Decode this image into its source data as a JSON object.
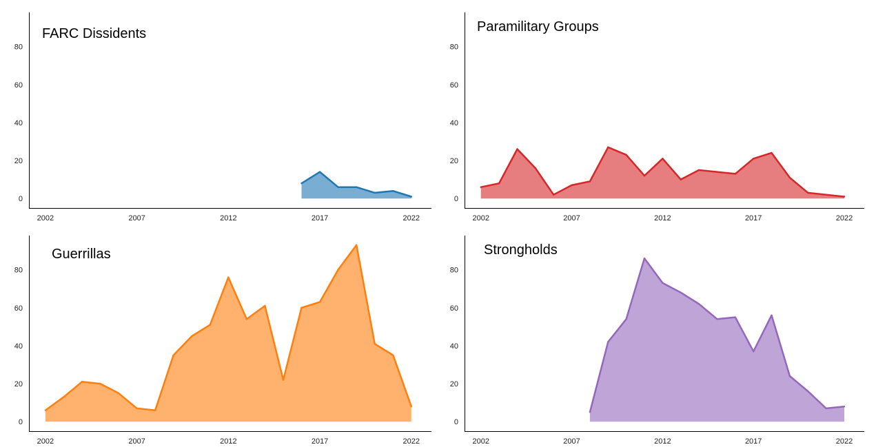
{
  "chart_data": [
    {
      "type": "area",
      "title": "FARC Dissidents",
      "color": "#1f77b4",
      "x": [
        2016,
        2017,
        2018,
        2019,
        2020,
        2021,
        2022
      ],
      "values": [
        8,
        14,
        6,
        6,
        3,
        4,
        1
      ],
      "xticks": [
        "2002",
        "2007",
        "2012",
        "2017",
        "2022"
      ],
      "yticks": [
        "0",
        "20",
        "40",
        "60",
        "80"
      ],
      "xlim": [
        2001.1,
        2023.1
      ],
      "ylim": [
        -5,
        98
      ],
      "xlabel": "",
      "ylabel": "",
      "grid": false
    },
    {
      "type": "area",
      "title": "Paramilitary Groups",
      "color": "#d62728",
      "x": [
        2002,
        2003,
        2004,
        2005,
        2006,
        2007,
        2008,
        2009,
        2010,
        2011,
        2012,
        2013,
        2014,
        2015,
        2016,
        2017,
        2018,
        2019,
        2020,
        2021,
        2022
      ],
      "values": [
        6,
        8,
        26,
        16,
        2,
        7,
        9,
        27,
        23,
        12,
        21,
        10,
        15,
        14,
        13,
        21,
        24,
        11,
        3,
        2,
        1
      ],
      "xticks": [
        "2002",
        "2007",
        "2012",
        "2017",
        "2022"
      ],
      "yticks": [
        "0",
        "20",
        "40",
        "60",
        "80"
      ],
      "xlim": [
        2001.1,
        2023.1
      ],
      "ylim": [
        -5,
        98
      ],
      "xlabel": "",
      "ylabel": "",
      "grid": false
    },
    {
      "type": "area",
      "title": "Guerrillas",
      "color": "#ff7f0e",
      "x": [
        2002,
        2003,
        2004,
        2005,
        2006,
        2007,
        2008,
        2009,
        2010,
        2011,
        2012,
        2013,
        2014,
        2015,
        2016,
        2017,
        2018,
        2019,
        2020,
        2021,
        2022
      ],
      "values": [
        6,
        13,
        21,
        20,
        15,
        7,
        6,
        35,
        45,
        51,
        76,
        54,
        61,
        22,
        60,
        63,
        80,
        93,
        41,
        35,
        8
      ],
      "xticks": [
        "2002",
        "2007",
        "2012",
        "2017",
        "2022"
      ],
      "yticks": [
        "0",
        "20",
        "40",
        "60",
        "80"
      ],
      "xlim": [
        2001.1,
        2023.1
      ],
      "ylim": [
        -5,
        98
      ],
      "xlabel": "",
      "ylabel": "",
      "grid": false
    },
    {
      "type": "area",
      "title": "Strongholds",
      "color": "#9467bd",
      "x": [
        2008,
        2009,
        2010,
        2011,
        2012,
        2013,
        2014,
        2015,
        2016,
        2017,
        2018,
        2019,
        2020,
        2021,
        2022
      ],
      "values": [
        5,
        42,
        54,
        86,
        73,
        68,
        62,
        54,
        55,
        37,
        56,
        24,
        16,
        7,
        8
      ],
      "xticks": [
        "2002",
        "2007",
        "2012",
        "2017",
        "2022"
      ],
      "yticks": [
        "0",
        "20",
        "40",
        "60",
        "80"
      ],
      "xlim": [
        2001.1,
        2023.1
      ],
      "ylim": [
        -5,
        98
      ],
      "xlabel": "",
      "ylabel": "",
      "grid": false
    }
  ]
}
